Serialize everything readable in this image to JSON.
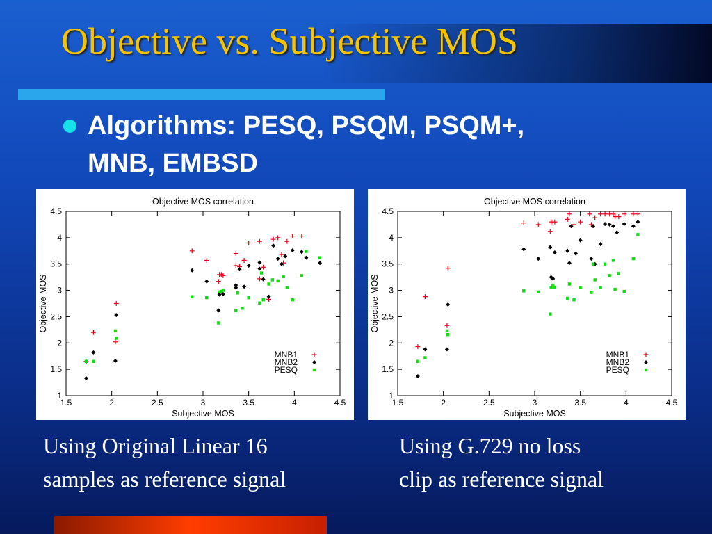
{
  "slide": {
    "title": "Objective vs. Subjective MOS",
    "bullet": "Algorithms: PESQ, PSQM, PSQM+, MNB, EMBSD",
    "captions": [
      "Using Original Linear 16\nsamples as reference signal",
      "Using G.729 no loss\nclip as reference signal"
    ],
    "colors": {
      "title": "#f5c400",
      "bullet_dot": "#16e1e8",
      "rule": "#2aa6ec",
      "bottom_bar": "#ff3d00"
    }
  },
  "chart_data": [
    {
      "type": "scatter",
      "title": "Objective MOS correlation",
      "xlabel": "Subjective MOS",
      "ylabel": "Objective MOS",
      "xlim": [
        1.5,
        4.5
      ],
      "ylim": [
        1,
        4.5
      ],
      "xticks": [
        "1.5",
        "2",
        "2.5",
        "3",
        "3.5",
        "4",
        "4.5"
      ],
      "yticks": [
        "1",
        "1.5",
        "2",
        "2.5",
        "3",
        "3.5",
        "4",
        "4.5"
      ],
      "grid": false,
      "legend_position": "bottom-right",
      "series": [
        {
          "name": "MNB1",
          "marker": "plus",
          "color": "#e8001a",
          "points": [
            [
              1.72,
              1.65
            ],
            [
              1.8,
              2.2
            ],
            [
              2.04,
              2.02
            ],
            [
              2.05,
              2.75
            ],
            [
              2.88,
              3.75
            ],
            [
              3.04,
              3.57
            ],
            [
              3.17,
              3.17
            ],
            [
              3.18,
              3.3
            ],
            [
              3.2,
              3.3
            ],
            [
              3.22,
              3.28
            ],
            [
              3.36,
              3.7
            ],
            [
              3.36,
              3.47
            ],
            [
              3.4,
              3.45
            ],
            [
              3.45,
              3.57
            ],
            [
              3.5,
              3.9
            ],
            [
              3.62,
              3.93
            ],
            [
              3.62,
              3.22
            ],
            [
              3.66,
              3.44
            ],
            [
              3.72,
              2.83
            ],
            [
              3.77,
              3.97
            ],
            [
              3.82,
              4.0
            ],
            [
              3.86,
              3.68
            ],
            [
              3.88,
              3.52
            ],
            [
              3.92,
              3.93
            ],
            [
              3.98,
              4.03
            ],
            [
              4.08,
              4.03
            ]
          ]
        },
        {
          "name": "MNB2",
          "marker": "diamond",
          "color": "#000000",
          "points": [
            [
              1.72,
              1.33
            ],
            [
              1.8,
              1.82
            ],
            [
              2.04,
              1.66
            ],
            [
              2.05,
              2.53
            ],
            [
              2.88,
              3.38
            ],
            [
              3.04,
              3.17
            ],
            [
              3.17,
              2.62
            ],
            [
              3.18,
              2.92
            ],
            [
              3.22,
              2.93
            ],
            [
              3.36,
              3.05
            ],
            [
              3.36,
              3.1
            ],
            [
              3.4,
              3.4
            ],
            [
              3.45,
              3.07
            ],
            [
              3.5,
              3.47
            ],
            [
              3.62,
              3.41
            ],
            [
              3.62,
              3.53
            ],
            [
              3.66,
              3.21
            ],
            [
              3.72,
              2.88
            ],
            [
              3.77,
              3.85
            ],
            [
              3.82,
              3.6
            ],
            [
              3.86,
              3.5
            ],
            [
              3.9,
              3.65
            ],
            [
              3.98,
              3.76
            ],
            [
              4.08,
              3.73
            ],
            [
              4.13,
              3.62
            ],
            [
              4.28,
              3.52
            ]
          ]
        },
        {
          "name": "PESQ",
          "marker": "square",
          "color": "#11dd11",
          "points": [
            [
              1.72,
              1.65
            ],
            [
              1.8,
              1.65
            ],
            [
              2.04,
              2.23
            ],
            [
              2.05,
              2.09
            ],
            [
              2.88,
              2.88
            ],
            [
              3.04,
              2.86
            ],
            [
              3.17,
              2.38
            ],
            [
              3.18,
              2.97
            ],
            [
              3.2,
              2.98
            ],
            [
              3.22,
              3.0
            ],
            [
              3.36,
              2.62
            ],
            [
              3.38,
              2.95
            ],
            [
              3.43,
              2.66
            ],
            [
              3.5,
              2.86
            ],
            [
              3.62,
              2.76
            ],
            [
              3.64,
              3.33
            ],
            [
              3.66,
              2.82
            ],
            [
              3.72,
              3.12
            ],
            [
              3.76,
              3.2
            ],
            [
              3.82,
              3.18
            ],
            [
              3.88,
              3.26
            ],
            [
              3.92,
              3.05
            ],
            [
              3.98,
              2.82
            ],
            [
              4.08,
              3.28
            ],
            [
              4.13,
              3.74
            ],
            [
              4.28,
              3.62
            ]
          ]
        }
      ]
    },
    {
      "type": "scatter",
      "title": "Objective MOS correlation",
      "xlabel": "Subjective MOS",
      "ylabel": "Objective MOS",
      "xlim": [
        1.5,
        4.5
      ],
      "ylim": [
        1,
        4.5
      ],
      "xticks": [
        "1.5",
        "2",
        "2.5",
        "3",
        "3.5",
        "4",
        "4.5"
      ],
      "yticks": [
        "1",
        "1.5",
        "2",
        "2.5",
        "3",
        "3.5",
        "4",
        "4.5"
      ],
      "grid": false,
      "legend_position": "bottom-right",
      "series": [
        {
          "name": "MNB1",
          "marker": "plus",
          "color": "#e8001a",
          "points": [
            [
              1.72,
              1.93
            ],
            [
              1.8,
              2.88
            ],
            [
              2.04,
              2.33
            ],
            [
              2.05,
              3.42
            ],
            [
              2.88,
              4.28
            ],
            [
              3.04,
              4.25
            ],
            [
              3.17,
              4.12
            ],
            [
              3.18,
              4.3
            ],
            [
              3.2,
              4.3
            ],
            [
              3.22,
              4.3
            ],
            [
              3.36,
              4.35
            ],
            [
              3.38,
              4.45
            ],
            [
              3.43,
              4.25
            ],
            [
              3.5,
              4.3
            ],
            [
              3.6,
              4.45
            ],
            [
              3.62,
              4.25
            ],
            [
              3.66,
              4.38
            ],
            [
              3.72,
              4.45
            ],
            [
              3.77,
              4.45
            ],
            [
              3.82,
              4.45
            ],
            [
              3.86,
              4.45
            ],
            [
              3.88,
              4.4
            ],
            [
              3.92,
              4.4
            ],
            [
              3.98,
              4.45
            ],
            [
              4.08,
              4.45
            ],
            [
              4.13,
              4.45
            ]
          ]
        },
        {
          "name": "MNB2",
          "marker": "diamond",
          "color": "#000000",
          "points": [
            [
              1.72,
              1.37
            ],
            [
              1.8,
              1.88
            ],
            [
              2.04,
              1.88
            ],
            [
              2.05,
              2.73
            ],
            [
              2.88,
              3.78
            ],
            [
              3.04,
              3.6
            ],
            [
              3.17,
              3.82
            ],
            [
              3.18,
              3.25
            ],
            [
              3.2,
              3.22
            ],
            [
              3.22,
              3.72
            ],
            [
              3.36,
              3.75
            ],
            [
              3.38,
              3.52
            ],
            [
              3.4,
              4.22
            ],
            [
              3.45,
              3.7
            ],
            [
              3.5,
              3.95
            ],
            [
              3.62,
              3.6
            ],
            [
              3.64,
              4.22
            ],
            [
              3.66,
              3.5
            ],
            [
              3.72,
              3.88
            ],
            [
              3.77,
              4.26
            ],
            [
              3.82,
              4.25
            ],
            [
              3.86,
              4.22
            ],
            [
              3.9,
              4.1
            ],
            [
              3.98,
              4.26
            ],
            [
              4.08,
              4.22
            ],
            [
              4.13,
              4.3
            ]
          ]
        },
        {
          "name": "PESQ",
          "marker": "square",
          "color": "#11dd11",
          "points": [
            [
              1.72,
              1.65
            ],
            [
              1.8,
              1.72
            ],
            [
              2.04,
              2.23
            ],
            [
              2.05,
              2.16
            ],
            [
              2.88,
              2.99
            ],
            [
              3.04,
              2.97
            ],
            [
              3.17,
              2.55
            ],
            [
              3.18,
              3.05
            ],
            [
              3.2,
              3.1
            ],
            [
              3.22,
              3.06
            ],
            [
              3.36,
              2.85
            ],
            [
              3.38,
              3.12
            ],
            [
              3.43,
              2.82
            ],
            [
              3.5,
              3.05
            ],
            [
              3.62,
              2.96
            ],
            [
              3.64,
              3.5
            ],
            [
              3.66,
              3.2
            ],
            [
              3.72,
              3.05
            ],
            [
              3.77,
              3.5
            ],
            [
              3.82,
              3.28
            ],
            [
              3.86,
              3.57
            ],
            [
              3.88,
              3.02
            ],
            [
              3.92,
              3.32
            ],
            [
              3.98,
              2.98
            ],
            [
              4.08,
              3.6
            ],
            [
              4.13,
              4.06
            ]
          ]
        }
      ]
    }
  ]
}
